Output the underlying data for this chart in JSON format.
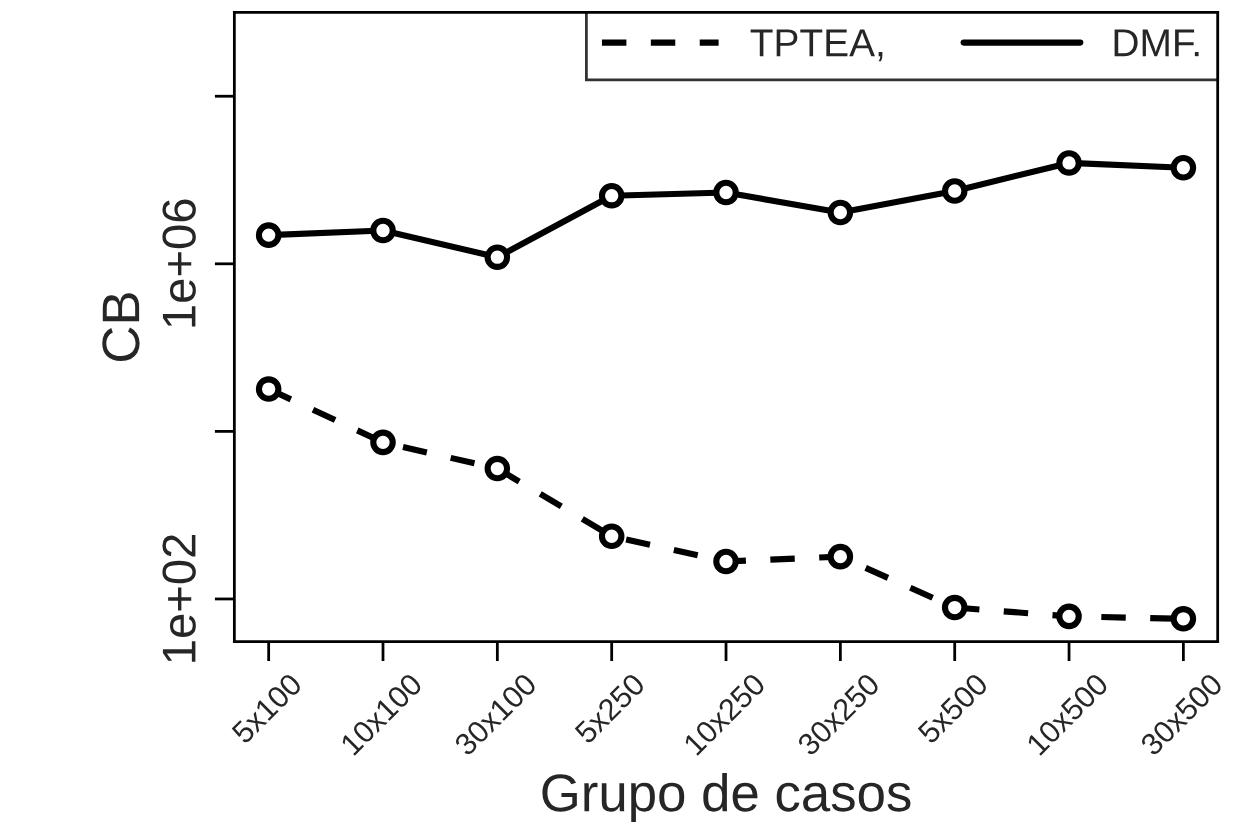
{
  "chart_data": {
    "type": "line",
    "xlabel": "Grupo de casos",
    "ylabel": "CB",
    "categories": [
      "5x100",
      "10x100",
      "30x100",
      "5x250",
      "10x250",
      "30x250",
      "5x500",
      "10x500",
      "30x500"
    ],
    "series": [
      {
        "name": "TPTEA,",
        "color": "#000000",
        "line_style": "dashed",
        "values": [
          32000,
          7400,
          3600,
          560,
          280,
          320,
          79,
          62,
          58
        ]
      },
      {
        "name": "DMF.",
        "color": "#000000",
        "line_style": "solid",
        "values": [
          2200000,
          2500000,
          1200000,
          6500000,
          7100000,
          4100000,
          7400000,
          16000000,
          14000000
        ]
      }
    ],
    "log": "y",
    "ylim": [
      31,
      1000000000
    ],
    "yticks": [
      {
        "value": 100,
        "label": "1e+02"
      },
      {
        "value": 10000,
        "label": null
      },
      {
        "value": 1000000,
        "label": "1e+06"
      },
      {
        "value": 100000000,
        "label": null
      }
    ],
    "marker": "circle",
    "grid": false,
    "legend": "top right"
  }
}
